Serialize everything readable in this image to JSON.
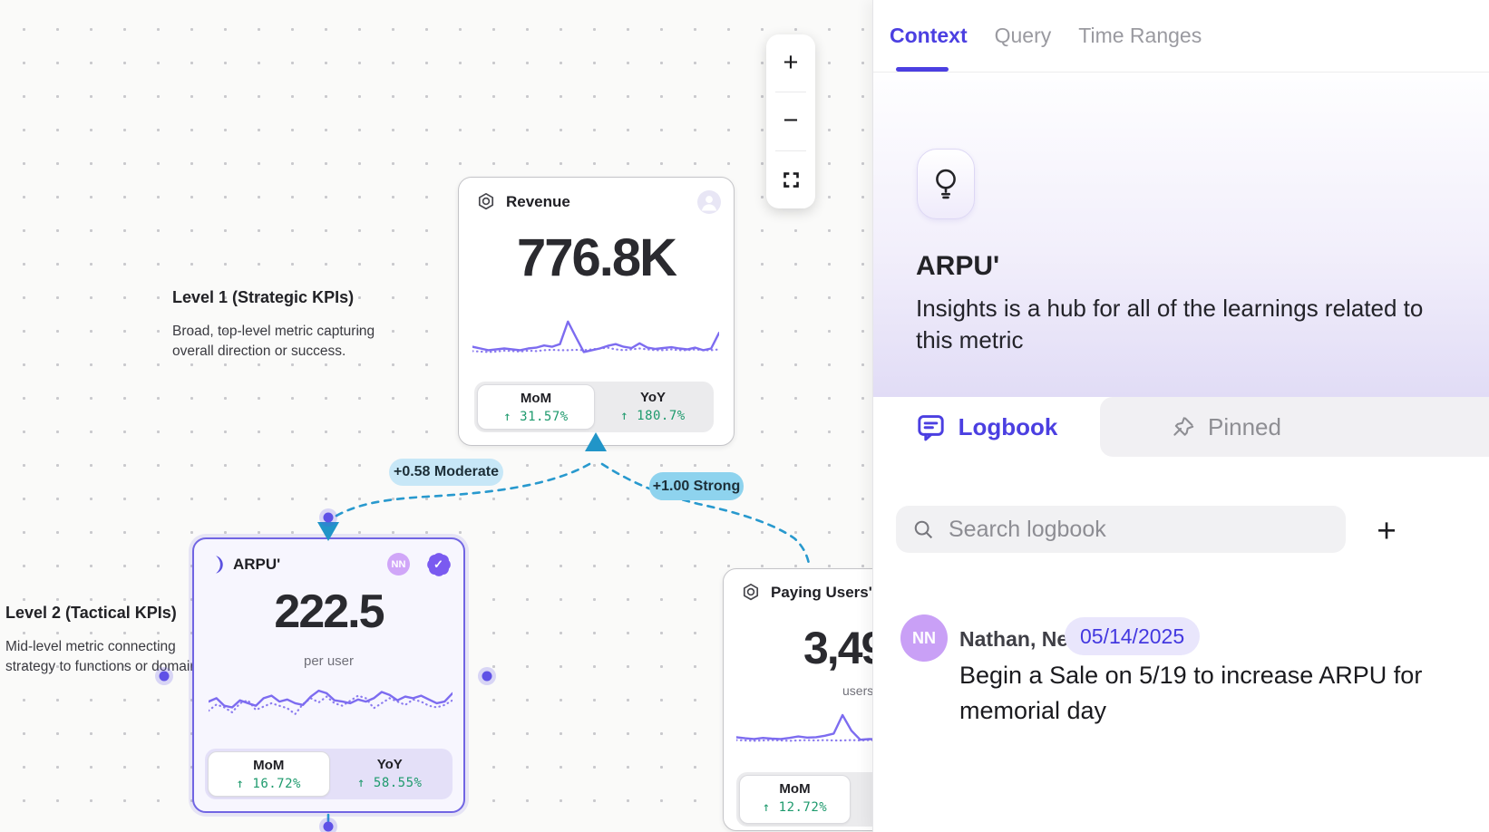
{
  "canvas": {
    "zoom_controls": {
      "zoom_in": "+",
      "zoom_out": "−"
    },
    "levels": [
      {
        "title": "Level 1 (Strategic KPIs)",
        "line1": "Broad, top-level metric capturing",
        "line2": "overall direction or success."
      },
      {
        "title": "Level 2 (Tactical KPIs)",
        "line1": "Mid-level metric connecting",
        "line2": "strategy to functions or domains."
      }
    ],
    "edges": [
      {
        "label": "+0.58 Moderate"
      },
      {
        "label": "+1.00 Strong"
      }
    ],
    "cards": {
      "revenue": {
        "title": "Revenue",
        "value": "776.8K",
        "mom_label": "MoM",
        "mom_value": "↑ 31.57%",
        "yoy_label": "YoY",
        "yoy_value": "↑ 180.7%",
        "spark": {
          "solid": [
            30,
            26,
            22,
            24,
            26,
            24,
            22,
            26,
            28,
            33,
            30,
            36,
            88,
            52,
            18,
            22,
            26,
            32,
            36,
            30,
            27,
            38,
            28,
            25,
            27,
            29,
            26,
            24,
            28,
            22,
            26,
            62
          ],
          "dotted": [
            20,
            19,
            18,
            19,
            21,
            20,
            19,
            21,
            20,
            22,
            23,
            22,
            22,
            23,
            22,
            24,
            26,
            28,
            24,
            22,
            24,
            26,
            24,
            22,
            22,
            24,
            22,
            22,
            24,
            22,
            22,
            24
          ]
        }
      },
      "arpu": {
        "title": "ARPU'",
        "value": "222.5",
        "unit": "per user",
        "badge_initials": "NN",
        "verified_check": "✓",
        "mom_label": "MoM",
        "mom_value": "↑ 16.72%",
        "yoy_label": "YoY",
        "yoy_value": "↑ 58.55%",
        "spark": {
          "solid": [
            52,
            60,
            42,
            38,
            55,
            48,
            42,
            60,
            66,
            52,
            57,
            48,
            44,
            64,
            78,
            72,
            55,
            52,
            48,
            57,
            52,
            60,
            75,
            68,
            55,
            64,
            60,
            66,
            57,
            48,
            52,
            72
          ],
          "dotted": [
            30,
            45,
            38,
            26,
            48,
            55,
            32,
            40,
            48,
            42,
            36,
            22,
            46,
            60,
            50,
            64,
            48,
            42,
            54,
            66,
            60,
            36,
            48,
            60,
            52,
            44,
            57,
            52,
            42,
            38,
            44,
            55
          ]
        }
      },
      "paying_users": {
        "title": "Paying Users'",
        "value": "3,49",
        "unit": "users",
        "mom_label": "MoM",
        "mom_value": "↑ 12.72%",
        "spark": {
          "solid": [
            24,
            21,
            19,
            22,
            20,
            19,
            22,
            26,
            23,
            24,
            28,
            34,
            85,
            42,
            17,
            19,
            18,
            17,
            19,
            18,
            17,
            19,
            18,
            17,
            18,
            17
          ],
          "dotted": [
            16,
            15,
            14,
            15,
            16,
            15,
            14,
            15,
            16,
            15,
            16,
            15,
            15,
            16,
            15,
            16,
            15,
            14,
            15,
            16,
            15,
            14,
            15,
            16,
            15,
            15
          ]
        }
      }
    }
  },
  "panel": {
    "tabs": [
      {
        "label": "Context",
        "active": true
      },
      {
        "label": "Query",
        "active": false
      },
      {
        "label": "Time Ranges",
        "active": false
      }
    ],
    "metric": {
      "name": "ARPU'",
      "description_line1": "Insights is a hub for all of the learnings related to",
      "description_line2": "this metric"
    },
    "sections": {
      "logbook_label": "Logbook",
      "pinned_label": "Pinned"
    },
    "search_placeholder": "Search logbook",
    "add_label": "+",
    "entries": [
      {
        "initials": "NN",
        "author": "Nathan, Neha",
        "date": "05/14/2025",
        "text_line1": "Begin a Sale on 5/19 to increase ARPU for",
        "text_line2": "memorial day"
      }
    ]
  },
  "colors": {
    "accent_purple": "#4B3FE1",
    "edge_blue": "#2899CE",
    "positive_green": "#1E9A6D"
  }
}
